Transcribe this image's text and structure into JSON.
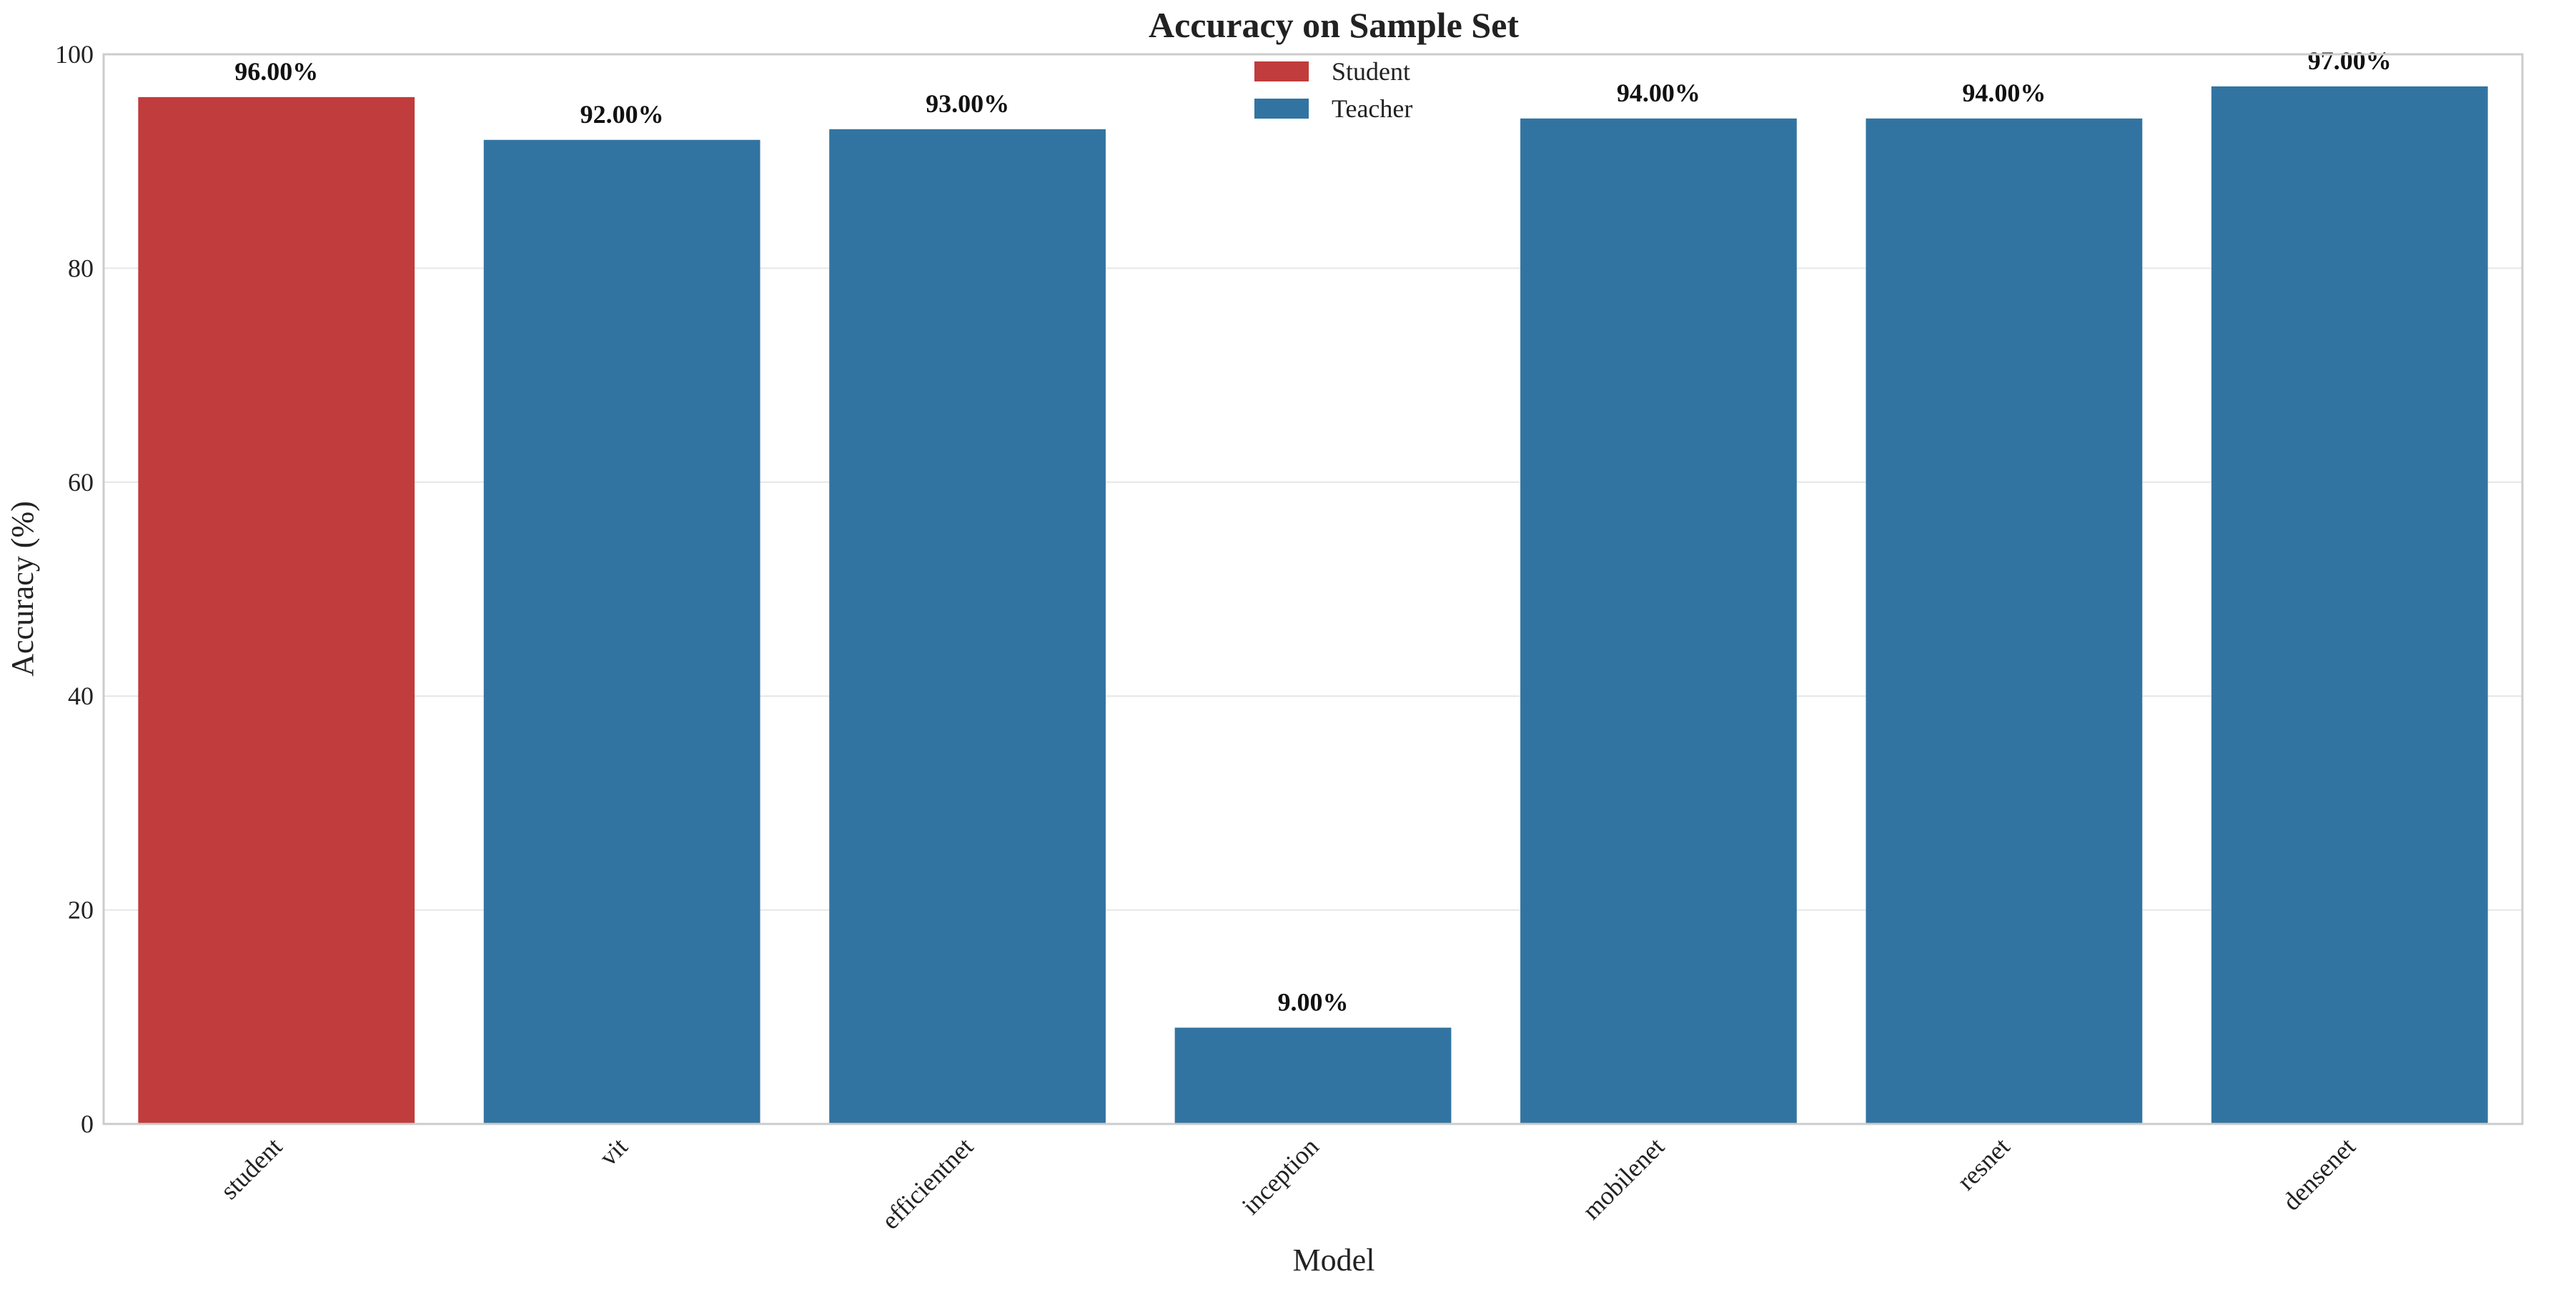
{
  "chart_data": {
    "type": "bar",
    "title": "Accuracy on Sample Set",
    "xlabel": "Model",
    "ylabel": "Accuracy (%)",
    "categories": [
      "student",
      "vit",
      "efficientnet",
      "inception",
      "mobilenet",
      "resnet",
      "densenet"
    ],
    "values": [
      96.0,
      92.0,
      93.0,
      9.0,
      94.0,
      94.0,
      97.0
    ],
    "value_labels": [
      "96.00%",
      "92.00%",
      "93.00%",
      "9.00%",
      "94.00%",
      "94.00%",
      "97.00%"
    ],
    "groups": [
      "Student",
      "Teacher",
      "Teacher",
      "Teacher",
      "Teacher",
      "Teacher",
      "Teacher"
    ],
    "ylim": [
      0,
      100
    ],
    "yticks": [
      0,
      20,
      40,
      60,
      80,
      100
    ],
    "grid": true,
    "legend": {
      "placement": "top-center",
      "entries": [
        {
          "name": "Student",
          "color": "#c13c3c"
        },
        {
          "name": "Teacher",
          "color": "#3274a1"
        }
      ]
    }
  }
}
